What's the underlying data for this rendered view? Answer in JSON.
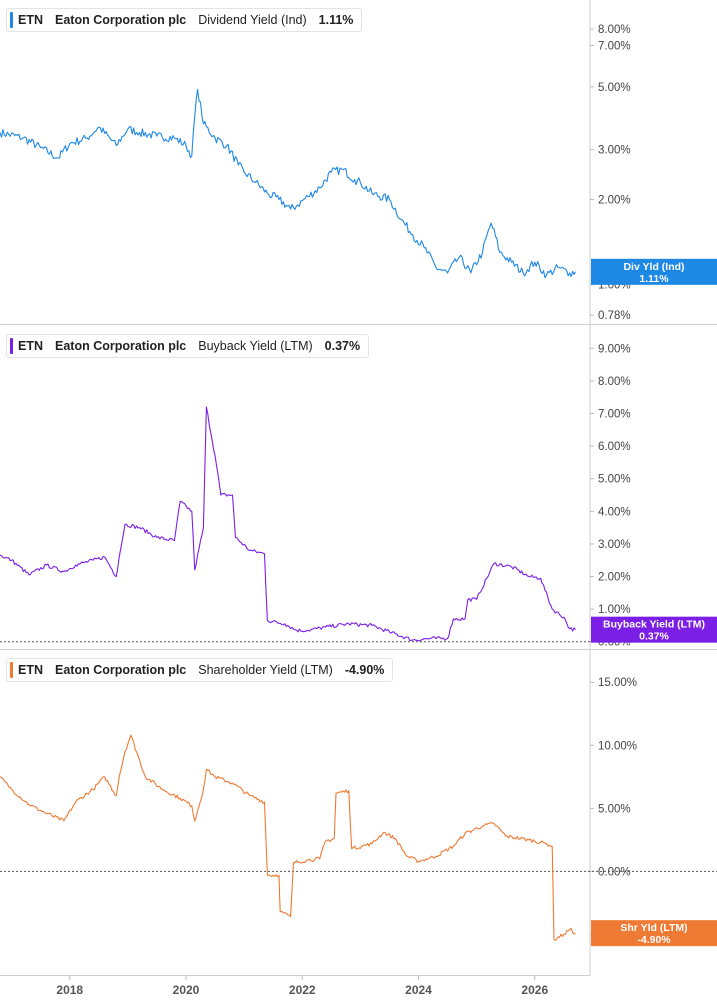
{
  "ticker": "ETN",
  "company": "Eaton Corporation plc",
  "chart_data": [
    {
      "type": "line",
      "metric": "Dividend Yield (Ind)",
      "current_value": "1.11%",
      "badge": [
        "Div Yld (Ind)",
        "1.11%"
      ],
      "color": "#1e88e5",
      "scale": "log",
      "ylim": [
        0.75,
        9.5
      ],
      "yticks": [
        {
          "v": 8,
          "label": "8.00%"
        },
        {
          "v": 7,
          "label": "7.00%"
        },
        {
          "v": 5,
          "label": "5.00%"
        },
        {
          "v": 3,
          "label": "3.00%"
        },
        {
          "v": 2,
          "label": "2.00%"
        },
        {
          "v": 1,
          "label": "1.00%"
        },
        {
          "v": 0.78,
          "label": "0.78%"
        }
      ],
      "series": [
        {
          "points": [
            [
              2016.8,
              3.45
            ],
            [
              2017.2,
              3.3
            ],
            [
              2017.5,
              3.05
            ],
            [
              2017.8,
              2.8
            ],
            [
              2018.0,
              3.15
            ],
            [
              2018.3,
              3.3
            ],
            [
              2018.5,
              3.6
            ],
            [
              2018.8,
              3.1
            ],
            [
              2019.0,
              3.55
            ],
            [
              2019.2,
              3.45
            ],
            [
              2019.5,
              3.35
            ],
            [
              2019.8,
              3.3
            ],
            [
              2020.0,
              3.1
            ],
            [
              2020.1,
              2.85
            ],
            [
              2020.2,
              4.9
            ],
            [
              2020.3,
              3.7
            ],
            [
              2020.5,
              3.3
            ],
            [
              2020.7,
              3.1
            ],
            [
              2020.9,
              2.65
            ],
            [
              2021.0,
              2.5
            ],
            [
              2021.2,
              2.3
            ],
            [
              2021.4,
              2.1
            ],
            [
              2021.6,
              2.0
            ],
            [
              2021.8,
              1.85
            ],
            [
              2021.9,
              1.9
            ],
            [
              2022.1,
              2.05
            ],
            [
              2022.3,
              2.2
            ],
            [
              2022.5,
              2.5
            ],
            [
              2022.7,
              2.55
            ],
            [
              2022.9,
              2.35
            ],
            [
              2023.0,
              2.3
            ],
            [
              2023.2,
              2.1
            ],
            [
              2023.5,
              2.0
            ],
            [
              2023.7,
              1.7
            ],
            [
              2023.9,
              1.5
            ],
            [
              2024.1,
              1.35
            ],
            [
              2024.3,
              1.15
            ],
            [
              2024.5,
              1.1
            ],
            [
              2024.7,
              1.25
            ],
            [
              2024.9,
              1.1
            ],
            [
              2025.1,
              1.3
            ],
            [
              2025.25,
              1.65
            ],
            [
              2025.4,
              1.3
            ],
            [
              2025.6,
              1.2
            ],
            [
              2025.8,
              1.1
            ],
            [
              2026.0,
              1.2
            ],
            [
              2026.2,
              1.08
            ],
            [
              2026.4,
              1.15
            ],
            [
              2026.6,
              1.1
            ],
            [
              2026.7,
              1.11
            ]
          ]
        }
      ]
    },
    {
      "type": "line",
      "metric": "Buyback Yield (LTM)",
      "current_value": "0.37%",
      "badge": [
        "Buyback Yield (LTM)",
        "0.37%"
      ],
      "color": "#7b1fe6",
      "scale": "linear",
      "ylim": [
        -0.1,
        9.5
      ],
      "yticks": [
        {
          "v": 9,
          "label": "9.00%"
        },
        {
          "v": 8,
          "label": "8.00%"
        },
        {
          "v": 7,
          "label": "7.00%"
        },
        {
          "v": 6,
          "label": "6.00%"
        },
        {
          "v": 5,
          "label": "5.00%"
        },
        {
          "v": 4,
          "label": "4.00%"
        },
        {
          "v": 3,
          "label": "3.00%"
        },
        {
          "v": 2,
          "label": "2.00%"
        },
        {
          "v": 1,
          "label": "1.00%"
        },
        {
          "v": 0,
          "label": "0.00%"
        }
      ],
      "zero_line": 0,
      "series": [
        {
          "points": [
            [
              2016.8,
              2.65
            ],
            [
              2017.0,
              2.5
            ],
            [
              2017.3,
              2.05
            ],
            [
              2017.6,
              2.35
            ],
            [
              2017.9,
              2.15
            ],
            [
              2018.1,
              2.35
            ],
            [
              2018.4,
              2.5
            ],
            [
              2018.6,
              2.6
            ],
            [
              2018.8,
              2.0
            ],
            [
              2018.85,
              2.6
            ],
            [
              2018.95,
              3.6
            ],
            [
              2019.2,
              3.5
            ],
            [
              2019.5,
              3.2
            ],
            [
              2019.8,
              3.1
            ],
            [
              2019.9,
              4.3
            ],
            [
              2020.1,
              4.0
            ],
            [
              2020.15,
              2.2
            ],
            [
              2020.3,
              3.5
            ],
            [
              2020.35,
              7.2
            ],
            [
              2020.5,
              5.7
            ],
            [
              2020.6,
              4.5
            ],
            [
              2020.8,
              4.5
            ],
            [
              2020.85,
              3.2
            ],
            [
              2021.1,
              2.8
            ],
            [
              2021.35,
              2.7
            ],
            [
              2021.4,
              0.65
            ],
            [
              2021.7,
              0.55
            ],
            [
              2021.9,
              0.35
            ],
            [
              2022.1,
              0.35
            ],
            [
              2022.4,
              0.45
            ],
            [
              2022.8,
              0.55
            ],
            [
              2023.2,
              0.5
            ],
            [
              2023.5,
              0.3
            ],
            [
              2023.9,
              0.05
            ],
            [
              2024.2,
              0.1
            ],
            [
              2024.5,
              0.1
            ],
            [
              2024.6,
              0.7
            ],
            [
              2024.8,
              0.7
            ],
            [
              2024.85,
              1.3
            ],
            [
              2025.0,
              1.3
            ],
            [
              2025.05,
              1.5
            ],
            [
              2025.3,
              2.4
            ],
            [
              2025.6,
              2.3
            ],
            [
              2025.9,
              2.0
            ],
            [
              2026.1,
              1.95
            ],
            [
              2026.3,
              1.0
            ],
            [
              2026.5,
              0.75
            ],
            [
              2026.6,
              0.4
            ],
            [
              2026.7,
              0.37
            ]
          ]
        }
      ]
    },
    {
      "type": "line",
      "metric": "Shareholder Yield (LTM)",
      "current_value": "-4.90%",
      "badge": [
        "Shr Yld (LTM)",
        "-4.90%"
      ],
      "color": "#ef7a33",
      "scale": "linear",
      "ylim": [
        -7.9,
        17.0
      ],
      "yticks": [
        {
          "v": 15,
          "label": "15.00%"
        },
        {
          "v": 10,
          "label": "10.00%"
        },
        {
          "v": 5,
          "label": "5.00%"
        },
        {
          "v": 0,
          "label": "0.00%"
        },
        {
          "v": -5,
          "label": "-5.00%"
        }
      ],
      "zero_line": 0,
      "series": [
        {
          "points": [
            [
              2016.8,
              7.5
            ],
            [
              2017.0,
              6.5
            ],
            [
              2017.3,
              5.3
            ],
            [
              2017.6,
              4.6
            ],
            [
              2017.9,
              4.0
            ],
            [
              2018.1,
              5.5
            ],
            [
              2018.4,
              6.5
            ],
            [
              2018.6,
              7.5
            ],
            [
              2018.8,
              6.0
            ],
            [
              2018.85,
              7.5
            ],
            [
              2018.95,
              9.5
            ],
            [
              2019.05,
              10.8
            ],
            [
              2019.3,
              7.5
            ],
            [
              2019.6,
              6.5
            ],
            [
              2019.9,
              5.8
            ],
            [
              2020.1,
              5.2
            ],
            [
              2020.15,
              4.0
            ],
            [
              2020.3,
              6.5
            ],
            [
              2020.35,
              8.1
            ],
            [
              2020.5,
              7.5
            ],
            [
              2020.8,
              7.0
            ],
            [
              2021.1,
              6.0
            ],
            [
              2021.35,
              5.5
            ],
            [
              2021.4,
              -0.3
            ],
            [
              2021.6,
              -0.3
            ],
            [
              2021.62,
              -3.2
            ],
            [
              2021.8,
              -3.6
            ],
            [
              2021.85,
              0.7
            ],
            [
              2022.1,
              0.9
            ],
            [
              2022.3,
              1.0
            ],
            [
              2022.4,
              2.4
            ],
            [
              2022.55,
              2.6
            ],
            [
              2022.58,
              6.2
            ],
            [
              2022.8,
              6.4
            ],
            [
              2022.85,
              1.8
            ],
            [
              2023.2,
              2.2
            ],
            [
              2023.4,
              3.1
            ],
            [
              2023.6,
              2.6
            ],
            [
              2023.8,
              1.2
            ],
            [
              2024.0,
              0.8
            ],
            [
              2024.3,
              1.2
            ],
            [
              2024.6,
              2.0
            ],
            [
              2024.8,
              3.0
            ],
            [
              2025.1,
              3.6
            ],
            [
              2025.3,
              3.8
            ],
            [
              2025.5,
              2.8
            ],
            [
              2025.9,
              2.5
            ],
            [
              2026.2,
              2.2
            ],
            [
              2026.3,
              2.0
            ],
            [
              2026.33,
              -5.4
            ],
            [
              2026.5,
              -5.0
            ],
            [
              2026.6,
              -4.6
            ],
            [
              2026.7,
              -4.9
            ]
          ]
        }
      ]
    }
  ],
  "x_axis": {
    "ticks": [
      {
        "v": 2018,
        "label": "2018"
      },
      {
        "v": 2020,
        "label": "2020"
      },
      {
        "v": 2022,
        "label": "2022"
      },
      {
        "v": 2024,
        "label": "2024"
      },
      {
        "v": 2026,
        "label": "2026"
      }
    ]
  }
}
